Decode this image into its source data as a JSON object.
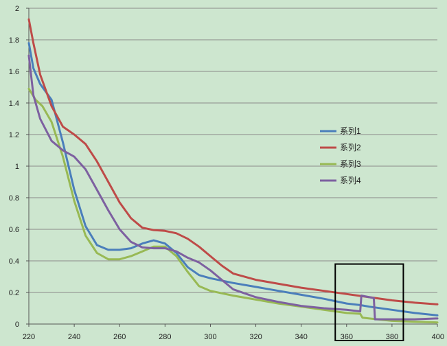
{
  "colors": {
    "background": "#cde6cf",
    "grid": "#8a8a8a",
    "axis": "#555555",
    "highlight_box": "#000000",
    "series1": "#4a7ebb",
    "series2": "#be4b48",
    "series3": "#98b954",
    "series4": "#7d60a0"
  },
  "chart_data": {
    "type": "line",
    "title": "",
    "xlabel": "",
    "ylabel": "",
    "xlim": [
      220,
      400
    ],
    "ylim": [
      0,
      2
    ],
    "x_ticks": [
      220,
      240,
      260,
      280,
      300,
      320,
      340,
      360,
      380,
      400
    ],
    "y_ticks": [
      0,
      0.2,
      0.4,
      0.6,
      0.8,
      1,
      1.2,
      1.4,
      1.6,
      1.8,
      2
    ],
    "x_tick_labels": [
      "220",
      "240",
      "260",
      "280",
      "300",
      "320",
      "340",
      "360",
      "380",
      "400"
    ],
    "y_tick_labels": [
      "0",
      "0.2",
      "0.4",
      "0.6",
      "0.8",
      "1",
      "1.2",
      "1.4",
      "1.6",
      "1.8",
      "2"
    ],
    "grid": "horizontal",
    "legend_position": "right",
    "annotation": "rectangle highlighting x 355 to 385, y 0 to 0.38",
    "highlight_region": {
      "x": [
        355,
        385
      ],
      "y": [
        0,
        0.38
      ]
    },
    "series": [
      {
        "name": "系列1",
        "color": "#4a7ebb",
        "points": [
          [
            220,
            1.78
          ],
          [
            222,
            1.62
          ],
          [
            225,
            1.52
          ],
          [
            230,
            1.42
          ],
          [
            235,
            1.15
          ],
          [
            240,
            0.85
          ],
          [
            245,
            0.62
          ],
          [
            250,
            0.5
          ],
          [
            255,
            0.47
          ],
          [
            260,
            0.47
          ],
          [
            265,
            0.48
          ],
          [
            270,
            0.51
          ],
          [
            275,
            0.53
          ],
          [
            280,
            0.51
          ],
          [
            285,
            0.45
          ],
          [
            290,
            0.36
          ],
          [
            295,
            0.31
          ],
          [
            300,
            0.29
          ],
          [
            310,
            0.26
          ],
          [
            320,
            0.235
          ],
          [
            330,
            0.21
          ],
          [
            340,
            0.185
          ],
          [
            350,
            0.16
          ],
          [
            360,
            0.13
          ],
          [
            366,
            0.12
          ],
          [
            370,
            0.11
          ],
          [
            380,
            0.09
          ],
          [
            390,
            0.07
          ],
          [
            400,
            0.055
          ]
        ]
      },
      {
        "name": "系列2",
        "color": "#be4b48",
        "points": [
          [
            220,
            1.93
          ],
          [
            222,
            1.78
          ],
          [
            225,
            1.58
          ],
          [
            230,
            1.38
          ],
          [
            235,
            1.25
          ],
          [
            240,
            1.2
          ],
          [
            245,
            1.14
          ],
          [
            250,
            1.03
          ],
          [
            255,
            0.9
          ],
          [
            260,
            0.77
          ],
          [
            265,
            0.67
          ],
          [
            270,
            0.61
          ],
          [
            275,
            0.595
          ],
          [
            280,
            0.59
          ],
          [
            285,
            0.575
          ],
          [
            290,
            0.54
          ],
          [
            295,
            0.49
          ],
          [
            300,
            0.43
          ],
          [
            305,
            0.37
          ],
          [
            310,
            0.32
          ],
          [
            320,
            0.28
          ],
          [
            330,
            0.255
          ],
          [
            340,
            0.23
          ],
          [
            350,
            0.21
          ],
          [
            360,
            0.19
          ],
          [
            370,
            0.17
          ],
          [
            380,
            0.15
          ],
          [
            390,
            0.135
          ],
          [
            400,
            0.125
          ]
        ]
      },
      {
        "name": "系列3",
        "color": "#98b954",
        "points": [
          [
            220,
            1.49
          ],
          [
            223,
            1.42
          ],
          [
            226,
            1.38
          ],
          [
            230,
            1.28
          ],
          [
            235,
            1.06
          ],
          [
            240,
            0.78
          ],
          [
            245,
            0.56
          ],
          [
            250,
            0.45
          ],
          [
            255,
            0.41
          ],
          [
            260,
            0.41
          ],
          [
            265,
            0.43
          ],
          [
            270,
            0.46
          ],
          [
            275,
            0.49
          ],
          [
            280,
            0.49
          ],
          [
            285,
            0.43
          ],
          [
            290,
            0.33
          ],
          [
            295,
            0.24
          ],
          [
            300,
            0.21
          ],
          [
            310,
            0.18
          ],
          [
            320,
            0.155
          ],
          [
            330,
            0.13
          ],
          [
            340,
            0.11
          ],
          [
            350,
            0.09
          ],
          [
            360,
            0.07
          ],
          [
            366,
            0.065
          ],
          [
            367,
            0.04
          ],
          [
            370,
            0.035
          ],
          [
            380,
            0.02
          ],
          [
            390,
            0.015
          ],
          [
            400,
            0.01
          ]
        ]
      },
      {
        "name": "系列4",
        "color": "#7d60a0",
        "points": [
          [
            220,
            1.7
          ],
          [
            222,
            1.45
          ],
          [
            225,
            1.3
          ],
          [
            230,
            1.16
          ],
          [
            235,
            1.1
          ],
          [
            240,
            1.06
          ],
          [
            245,
            0.98
          ],
          [
            250,
            0.85
          ],
          [
            255,
            0.72
          ],
          [
            260,
            0.6
          ],
          [
            265,
            0.52
          ],
          [
            270,
            0.485
          ],
          [
            275,
            0.48
          ],
          [
            280,
            0.48
          ],
          [
            285,
            0.46
          ],
          [
            290,
            0.42
          ],
          [
            295,
            0.39
          ],
          [
            300,
            0.34
          ],
          [
            305,
            0.28
          ],
          [
            310,
            0.22
          ],
          [
            320,
            0.17
          ],
          [
            330,
            0.14
          ],
          [
            340,
            0.115
          ],
          [
            350,
            0.1
          ],
          [
            360,
            0.09
          ],
          [
            366,
            0.08
          ],
          [
            366.5,
            0.18
          ],
          [
            372,
            0.165
          ],
          [
            372.5,
            0.03
          ],
          [
            380,
            0.03
          ],
          [
            390,
            0.03
          ],
          [
            400,
            0.035
          ]
        ]
      }
    ]
  }
}
